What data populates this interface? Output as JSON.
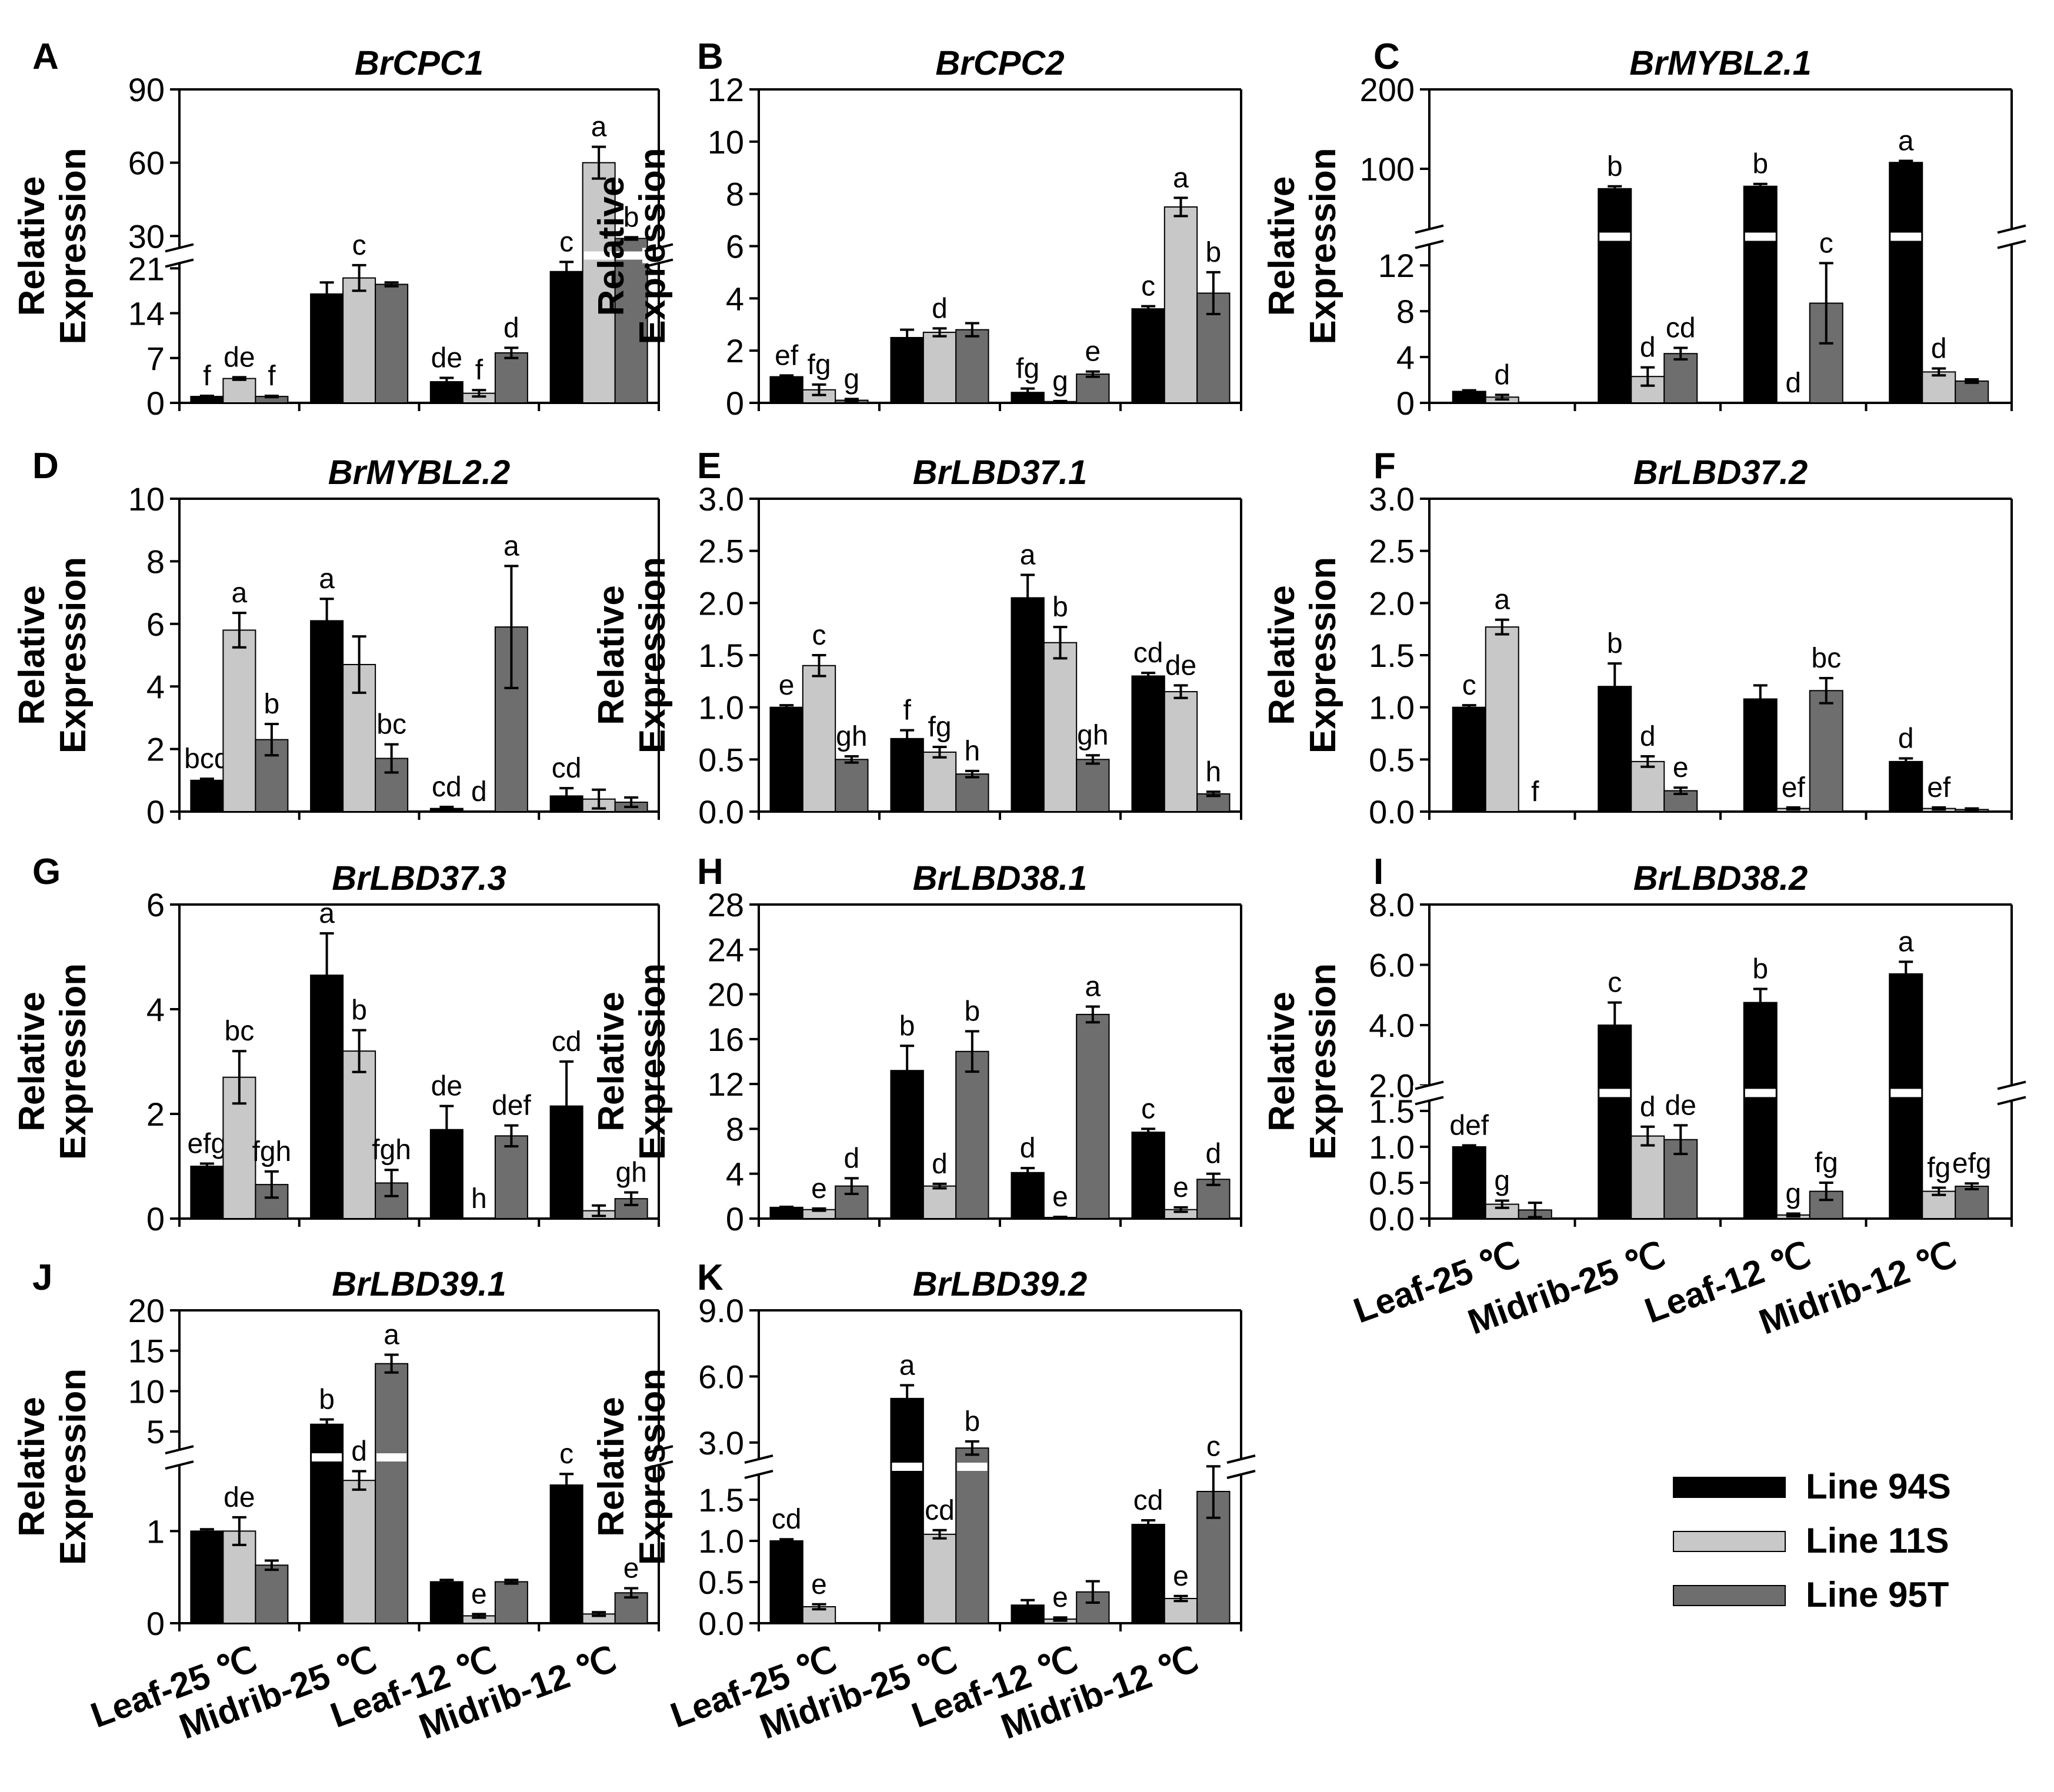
{
  "figure": {
    "categories": [
      "Leaf-25 ℃",
      "Midrib-25 ℃",
      "Leaf-12 ℃",
      "Midrib-12 ℃"
    ],
    "ylabel_line1": "Relative",
    "ylabel_line2": "Expression",
    "legend": [
      {
        "name": "Line 94S",
        "color": "#000000"
      },
      {
        "name": "Line 11S",
        "color": "#c8c8c8"
      },
      {
        "name": "Line 95T",
        "color": "#6e6e6e"
      }
    ]
  },
  "chart_data": [
    {
      "panel": "A",
      "title": "BrCPC1",
      "type": "bar",
      "broken_axis": true,
      "lower_ticks": [
        "0",
        "7",
        "14",
        "21"
      ],
      "lower_range": [
        0,
        23
      ],
      "upper_ticks": [
        "30",
        "60",
        "90"
      ],
      "upper_range": [
        22,
        90
      ],
      "series": [
        {
          "name": "Line 94S",
          "values": [
            1.0,
            17.0,
            3.3,
            20.5
          ],
          "errors": [
            0.1,
            1.8,
            0.6,
            1.5
          ],
          "letters": [
            "f",
            "",
            "de",
            "c"
          ]
        },
        {
          "name": "Line 11S",
          "values": [
            3.8,
            19.5,
            1.5,
            60.0
          ],
          "errors": [
            0.2,
            2.0,
            0.5,
            6.5
          ],
          "letters": [
            "de",
            "c",
            "f",
            "a"
          ]
        },
        {
          "name": "Line 95T",
          "values": [
            1.0,
            18.5,
            7.8,
            29.0
          ],
          "errors": [
            0.1,
            0.3,
            0.8,
            0.5
          ],
          "letters": [
            "f",
            "",
            "d",
            "b"
          ]
        }
      ]
    },
    {
      "panel": "B",
      "title": "BrCPC2",
      "type": "bar",
      "broken_axis": false,
      "ticks": [
        "0",
        "2",
        "4",
        "6",
        "8",
        "10",
        "12"
      ],
      "ylim": [
        0,
        12
      ],
      "series": [
        {
          "name": "Line 94S",
          "values": [
            1.0,
            2.5,
            0.4,
            3.6
          ],
          "errors": [
            0.05,
            0.3,
            0.15,
            0.1
          ],
          "letters": [
            "ef",
            "",
            "fg",
            "c"
          ]
        },
        {
          "name": "Line 11S",
          "values": [
            0.5,
            2.7,
            0.05,
            7.5
          ],
          "errors": [
            0.2,
            0.15,
            0.02,
            0.35
          ],
          "letters": [
            "fg",
            "d",
            "g",
            "a"
          ]
        },
        {
          "name": "Line 95T",
          "values": [
            0.1,
            2.8,
            1.1,
            4.2
          ],
          "errors": [
            0.05,
            0.25,
            0.1,
            0.8
          ],
          "letters": [
            "g",
            "",
            "e",
            "b"
          ]
        }
      ]
    },
    {
      "panel": "C",
      "title": "BrMYBL2.1",
      "type": "bar",
      "broken_axis": true,
      "lower_ticks": [
        "0",
        "4",
        "8",
        "12"
      ],
      "lower_range": [
        0,
        14.5
      ],
      "upper_ticks": [
        "100",
        "200"
      ],
      "upper_range": [
        14.5,
        200
      ],
      "series": [
        {
          "name": "Line 94S",
          "values": [
            1.0,
            75.0,
            78.0,
            108.0
          ],
          "errors": [
            0.1,
            3.0,
            3.0,
            2.0
          ],
          "letters": [
            "",
            "b",
            "b",
            "a"
          ]
        },
        {
          "name": "Line 11S",
          "values": [
            0.5,
            2.3,
            0.0,
            2.7
          ],
          "errors": [
            0.2,
            0.8,
            0.0,
            0.3
          ],
          "letters": [
            "d",
            "d",
            "d",
            "d"
          ]
        },
        {
          "name": "Line 95T",
          "values": [
            0.0,
            4.3,
            8.7,
            1.9
          ],
          "errors": [
            0.0,
            0.5,
            3.5,
            0.15
          ],
          "letters": [
            "",
            "cd",
            "c",
            ""
          ]
        }
      ]
    },
    {
      "panel": "D",
      "title": "BrMYBL2.2",
      "type": "bar",
      "broken_axis": false,
      "ticks": [
        "0",
        "2",
        "4",
        "6",
        "8",
        "10"
      ],
      "ylim": [
        0,
        10
      ],
      "series": [
        {
          "name": "Line 94S",
          "values": [
            1.0,
            6.1,
            0.1,
            0.5
          ],
          "errors": [
            0.05,
            0.7,
            0.05,
            0.25
          ],
          "letters": [
            "bcd",
            "a",
            "cd",
            "cd"
          ]
        },
        {
          "name": "Line 11S",
          "values": [
            5.8,
            4.7,
            0.0,
            0.4
          ],
          "errors": [
            0.55,
            0.9,
            0.0,
            0.3
          ],
          "letters": [
            "a",
            "",
            "d",
            ""
          ]
        },
        {
          "name": "Line 95T",
          "values": [
            2.3,
            1.7,
            5.9,
            0.3
          ],
          "errors": [
            0.5,
            0.45,
            1.95,
            0.15
          ],
          "letters": [
            "b",
            "bc",
            "a",
            ""
          ]
        }
      ]
    },
    {
      "panel": "E",
      "title": "BrLBD37.1",
      "type": "bar",
      "broken_axis": false,
      "ticks": [
        "0.0",
        "0.5",
        "1.0",
        "1.5",
        "2.0",
        "2.5",
        "3.0"
      ],
      "ylim": [
        0,
        3
      ],
      "series": [
        {
          "name": "Line 94S",
          "values": [
            1.0,
            0.7,
            2.05,
            1.3
          ],
          "errors": [
            0.02,
            0.08,
            0.22,
            0.03
          ],
          "letters": [
            "e",
            "f",
            "a",
            "cd"
          ]
        },
        {
          "name": "Line 11S",
          "values": [
            1.4,
            0.57,
            1.62,
            1.15
          ],
          "errors": [
            0.1,
            0.05,
            0.15,
            0.06
          ],
          "letters": [
            "c",
            "fg",
            "b",
            "de"
          ]
        },
        {
          "name": "Line 95T",
          "values": [
            0.5,
            0.36,
            0.5,
            0.17
          ],
          "errors": [
            0.03,
            0.03,
            0.04,
            0.02
          ],
          "letters": [
            "gh",
            "h",
            "gh",
            "h"
          ]
        }
      ]
    },
    {
      "panel": "F",
      "title": "BrLBD37.2",
      "type": "bar",
      "broken_axis": false,
      "ticks": [
        "0.0",
        "0.5",
        "1.0",
        "1.5",
        "2.0",
        "2.5",
        "3.0"
      ],
      "ylim": [
        0,
        3
      ],
      "series": [
        {
          "name": "Line 94S",
          "values": [
            1.0,
            1.2,
            1.08,
            0.48
          ],
          "errors": [
            0.02,
            0.22,
            0.13,
            0.03
          ],
          "letters": [
            "c",
            "b",
            "",
            "d"
          ]
        },
        {
          "name": "Line 11S",
          "values": [
            1.77,
            0.48,
            0.03,
            0.03
          ],
          "errors": [
            0.07,
            0.05,
            0.01,
            0.01
          ],
          "letters": [
            "a",
            "d",
            "ef",
            "ef"
          ]
        },
        {
          "name": "Line 95T",
          "values": [
            0.0,
            0.2,
            1.16,
            0.02
          ],
          "errors": [
            0.0,
            0.03,
            0.12,
            0.01
          ],
          "letters": [
            "f",
            "e",
            "bc",
            ""
          ]
        }
      ]
    },
    {
      "panel": "G",
      "title": "BrLBD37.3",
      "type": "bar",
      "broken_axis": false,
      "ticks": [
        "0",
        "2",
        "4",
        "6"
      ],
      "ylim": [
        0,
        6
      ],
      "series": [
        {
          "name": "Line 94S",
          "values": [
            1.0,
            4.65,
            1.7,
            2.15
          ],
          "errors": [
            0.05,
            0.8,
            0.45,
            0.85
          ],
          "letters": [
            "efg",
            "a",
            "de",
            "cd"
          ]
        },
        {
          "name": "Line 11S",
          "values": [
            2.7,
            3.2,
            0.0,
            0.15
          ],
          "errors": [
            0.5,
            0.4,
            0.0,
            0.1
          ],
          "letters": [
            "bc",
            "b",
            "h",
            ""
          ]
        },
        {
          "name": "Line 95T",
          "values": [
            0.65,
            0.68,
            1.58,
            0.38
          ],
          "errors": [
            0.25,
            0.25,
            0.2,
            0.12
          ],
          "letters": [
            "fgh",
            "fgh",
            "def",
            "gh"
          ]
        }
      ]
    },
    {
      "panel": "H",
      "title": "BrLBD38.1",
      "type": "bar",
      "broken_axis": false,
      "ticks": [
        "0",
        "4",
        "8",
        "12",
        "16",
        "20",
        "24",
        "28"
      ],
      "ylim": [
        0,
        28
      ],
      "series": [
        {
          "name": "Line 94S",
          "values": [
            1.0,
            13.2,
            4.1,
            7.7
          ],
          "errors": [
            0.05,
            2.2,
            0.4,
            0.3
          ],
          "letters": [
            "",
            "b",
            "d",
            "c"
          ]
        },
        {
          "name": "Line 11S",
          "values": [
            0.8,
            2.9,
            0.1,
            0.8
          ],
          "errors": [
            0.1,
            0.2,
            0.05,
            0.2
          ],
          "letters": [
            "e",
            "d",
            "e",
            "e"
          ]
        },
        {
          "name": "Line 95T",
          "values": [
            2.9,
            14.9,
            18.2,
            3.5
          ],
          "errors": [
            0.7,
            1.8,
            0.7,
            0.5
          ],
          "letters": [
            "d",
            "b",
            "a",
            "d"
          ]
        }
      ]
    },
    {
      "panel": "I",
      "title": "BrLBD38.2",
      "type": "bar",
      "broken_axis": true,
      "lower_ticks": [
        "0.0",
        "0.5",
        "1.0",
        "1.5"
      ],
      "lower_range": [
        0,
        1.75
      ],
      "upper_ticks": [
        "2.0",
        "4.0",
        "6.0",
        "8.0"
      ],
      "upper_range": [
        1.75,
        8
      ],
      "series": [
        {
          "name": "Line 94S",
          "values": [
            1.0,
            4.0,
            4.75,
            5.7
          ],
          "errors": [
            0.02,
            0.75,
            0.45,
            0.4
          ],
          "letters": [
            "def",
            "c",
            "b",
            "a"
          ]
        },
        {
          "name": "Line 11S",
          "values": [
            0.2,
            1.15,
            0.05,
            0.38
          ],
          "errors": [
            0.05,
            0.13,
            0.02,
            0.05
          ],
          "letters": [
            "g",
            "d",
            "g",
            "fg"
          ]
        },
        {
          "name": "Line 95T",
          "values": [
            0.12,
            1.1,
            0.38,
            0.45
          ],
          "errors": [
            0.1,
            0.2,
            0.12,
            0.04
          ],
          "letters": [
            "",
            "de",
            "fg",
            "efg"
          ]
        }
      ]
    },
    {
      "panel": "J",
      "title": "BrLBD39.1",
      "type": "bar",
      "broken_axis": true,
      "lower_ticks": [
        "0",
        "1"
      ],
      "lower_range": [
        0,
        1.8
      ],
      "upper_ticks": [
        "5",
        "10",
        "15",
        "20"
      ],
      "upper_range": [
        1.8,
        20
      ],
      "series": [
        {
          "name": "Line 94S",
          "values": [
            1.0,
            5.9,
            0.45,
            1.5
          ],
          "errors": [
            0.02,
            0.6,
            0.02,
            0.12
          ],
          "letters": [
            "",
            "b",
            "",
            "c"
          ]
        },
        {
          "name": "Line 11S",
          "values": [
            1.0,
            1.55,
            0.08,
            0.1
          ],
          "errors": [
            0.15,
            0.1,
            0.02,
            0.02
          ],
          "letters": [
            "de",
            "d",
            "e",
            ""
          ]
        },
        {
          "name": "Line 95T",
          "values": [
            0.63,
            13.4,
            0.45,
            0.33
          ],
          "errors": [
            0.05,
            1.1,
            0.02,
            0.05
          ],
          "letters": [
            "",
            "a",
            "",
            "e"
          ]
        }
      ]
    },
    {
      "panel": "K",
      "title": "BrLBD39.2",
      "type": "bar",
      "broken_axis": true,
      "lower_ticks": [
        "0.0",
        "0.5",
        "1.0",
        "1.5"
      ],
      "lower_range": [
        0,
        1.9
      ],
      "upper_ticks": [
        "3.0",
        "6.0",
        "9.0"
      ],
      "upper_range": [
        1.9,
        9
      ],
      "series": [
        {
          "name": "Line 94S",
          "values": [
            1.0,
            5.0,
            0.22,
            1.2
          ],
          "errors": [
            0.02,
            0.6,
            0.06,
            0.05
          ],
          "letters": [
            "cd",
            "a",
            "",
            "cd"
          ]
        },
        {
          "name": "Line 11S",
          "values": [
            0.2,
            1.08,
            0.05,
            0.3
          ],
          "errors": [
            0.03,
            0.05,
            0.02,
            0.03
          ],
          "letters": [
            "e",
            "cd",
            "e",
            "e"
          ]
        },
        {
          "name": "Line 95T",
          "values": [
            0.0,
            2.75,
            0.38,
            1.6
          ],
          "errors": [
            0.0,
            0.3,
            0.13,
            0.32
          ],
          "letters": [
            "",
            "b",
            "",
            "c"
          ]
        }
      ]
    }
  ]
}
